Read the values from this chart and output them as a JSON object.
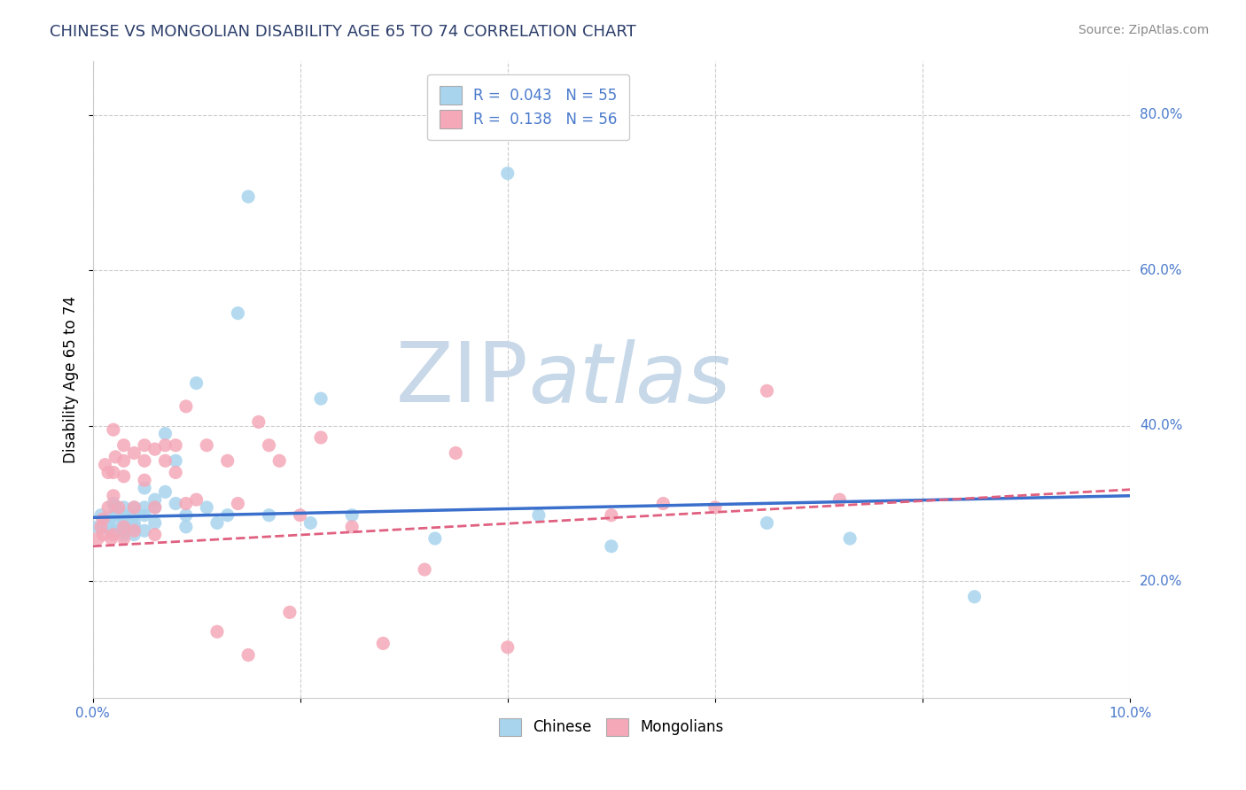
{
  "title": "CHINESE VS MONGOLIAN DISABILITY AGE 65 TO 74 CORRELATION CHART",
  "source": "Source: ZipAtlas.com",
  "xlabel": "",
  "ylabel": "Disability Age 65 to 74",
  "xlim": [
    0.0,
    0.1
  ],
  "ylim": [
    0.05,
    0.87
  ],
  "xticks": [
    0.0,
    0.02,
    0.04,
    0.06,
    0.08,
    0.1
  ],
  "xticklabels": [
    "0.0%",
    "",
    "",
    "",
    "",
    "10.0%"
  ],
  "yticks": [
    0.2,
    0.4,
    0.6,
    0.8
  ],
  "yticklabels": [
    "20.0%",
    "40.0%",
    "60.0%",
    "80.0%"
  ],
  "legend_R_chinese": "0.043",
  "legend_N_chinese": "55",
  "legend_R_mongolian": "0.138",
  "legend_N_mongolian": "56",
  "chinese_color": "#a8d4ee",
  "mongolian_color": "#f4a8b8",
  "chinese_line_color": "#3a6fcc",
  "mongolian_line_color": "#e06080",
  "background_color": "#ffffff",
  "grid_color": "#cccccc",
  "watermark_color": "#c8d8e8",
  "title_color": "#2c3e6b",
  "tick_color": "#4a7acc",
  "chinese_x": [
    0.0005,
    0.0008,
    0.001,
    0.0012,
    0.0015,
    0.0015,
    0.0018,
    0.002,
    0.002,
    0.002,
    0.002,
    0.0022,
    0.0025,
    0.003,
    0.003,
    0.003,
    0.003,
    0.003,
    0.003,
    0.003,
    0.004,
    0.004,
    0.004,
    0.004,
    0.004,
    0.005,
    0.005,
    0.005,
    0.005,
    0.006,
    0.006,
    0.006,
    0.007,
    0.007,
    0.008,
    0.008,
    0.009,
    0.009,
    0.01,
    0.011,
    0.012,
    0.013,
    0.014,
    0.015,
    0.017,
    0.021,
    0.022,
    0.025,
    0.033,
    0.04,
    0.043,
    0.05,
    0.065,
    0.073,
    0.085
  ],
  "chinese_y": [
    0.27,
    0.285,
    0.27,
    0.275,
    0.28,
    0.27,
    0.265,
    0.3,
    0.285,
    0.275,
    0.265,
    0.295,
    0.29,
    0.295,
    0.285,
    0.28,
    0.27,
    0.265,
    0.27,
    0.26,
    0.295,
    0.285,
    0.275,
    0.27,
    0.26,
    0.32,
    0.295,
    0.285,
    0.265,
    0.305,
    0.295,
    0.275,
    0.39,
    0.315,
    0.355,
    0.3,
    0.285,
    0.27,
    0.455,
    0.295,
    0.275,
    0.285,
    0.545,
    0.695,
    0.285,
    0.275,
    0.435,
    0.285,
    0.255,
    0.725,
    0.285,
    0.245,
    0.275,
    0.255,
    0.18
  ],
  "mongolian_x": [
    0.0005,
    0.0008,
    0.001,
    0.001,
    0.0012,
    0.0015,
    0.0015,
    0.0018,
    0.002,
    0.002,
    0.002,
    0.002,
    0.0022,
    0.0025,
    0.003,
    0.003,
    0.003,
    0.003,
    0.003,
    0.004,
    0.004,
    0.004,
    0.005,
    0.005,
    0.005,
    0.006,
    0.006,
    0.006,
    0.007,
    0.007,
    0.008,
    0.008,
    0.009,
    0.009,
    0.01,
    0.011,
    0.012,
    0.013,
    0.014,
    0.015,
    0.016,
    0.017,
    0.018,
    0.019,
    0.02,
    0.022,
    0.025,
    0.028,
    0.032,
    0.035,
    0.04,
    0.05,
    0.055,
    0.06,
    0.065,
    0.072
  ],
  "mongolian_y": [
    0.255,
    0.27,
    0.28,
    0.26,
    0.35,
    0.34,
    0.295,
    0.255,
    0.395,
    0.34,
    0.31,
    0.26,
    0.36,
    0.295,
    0.375,
    0.355,
    0.335,
    0.27,
    0.255,
    0.365,
    0.295,
    0.265,
    0.375,
    0.355,
    0.33,
    0.37,
    0.295,
    0.26,
    0.375,
    0.355,
    0.375,
    0.34,
    0.425,
    0.3,
    0.305,
    0.375,
    0.135,
    0.355,
    0.3,
    0.105,
    0.405,
    0.375,
    0.355,
    0.16,
    0.285,
    0.385,
    0.27,
    0.12,
    0.215,
    0.365,
    0.115,
    0.285,
    0.3,
    0.295,
    0.445,
    0.305
  ],
  "chinese_trend": [
    0.282,
    0.31
  ],
  "mongolian_trend": [
    0.245,
    0.318
  ]
}
